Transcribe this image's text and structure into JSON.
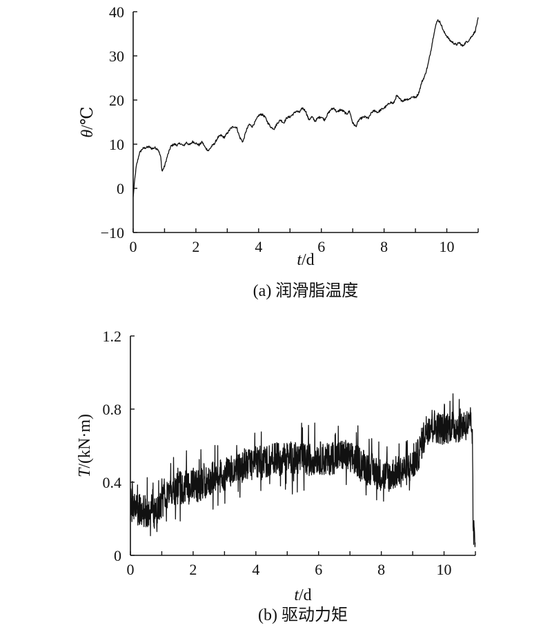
{
  "chart_data": [
    {
      "type": "line",
      "caption": "(a) 润滑脂温度",
      "xlabel_var": "t",
      "xlabel_unit": "/d",
      "ylabel_var": "θ",
      "ylabel_unit": "/℃",
      "xlim": [
        0,
        11
      ],
      "ylim": [
        -10,
        40
      ],
      "xticks": [
        "0",
        "2",
        "4",
        "6",
        "8",
        "10"
      ],
      "yticks": [
        "−10",
        "0",
        "10",
        "20",
        "30",
        "40"
      ],
      "series": [
        {
          "x": [
            0,
            0.05,
            0.1,
            0.2,
            0.3,
            0.4,
            0.5,
            0.6,
            0.7,
            0.8,
            0.88,
            0.92,
            1.0,
            1.1,
            1.2,
            1.3,
            1.4,
            1.5,
            1.6,
            1.7,
            1.8,
            1.9,
            2.0,
            2.1,
            2.2,
            2.3,
            2.4,
            2.5,
            2.6,
            2.7,
            2.8,
            2.9,
            3.0,
            3.1,
            3.2,
            3.3,
            3.4,
            3.5,
            3.6,
            3.7,
            3.8,
            3.9,
            4.0,
            4.1,
            4.2,
            4.3,
            4.4,
            4.5,
            4.6,
            4.7,
            4.8,
            4.9,
            5.0,
            5.1,
            5.2,
            5.3,
            5.4,
            5.5,
            5.6,
            5.7,
            5.8,
            5.9,
            6.0,
            6.1,
            6.2,
            6.3,
            6.4,
            6.5,
            6.6,
            6.7,
            6.8,
            6.9,
            7.0,
            7.1,
            7.2,
            7.3,
            7.4,
            7.5,
            7.6,
            7.7,
            7.8,
            7.9,
            8.0,
            8.1,
            8.2,
            8.3,
            8.4,
            8.5,
            8.6,
            8.7,
            8.8,
            8.9,
            9.0,
            9.1,
            9.2,
            9.3,
            9.4,
            9.5,
            9.6,
            9.7,
            9.8,
            9.9,
            10.0,
            10.1,
            10.2,
            10.3,
            10.4,
            10.5,
            10.6,
            10.7,
            10.8,
            10.9,
            11.0
          ],
          "values": [
            -2,
            2,
            5,
            8,
            9,
            9.2,
            9.4,
            9,
            9.2,
            8.8,
            7,
            3.8,
            5,
            7.5,
            9.5,
            10,
            9.8,
            10.2,
            9.6,
            10.4,
            9.8,
            10.6,
            10.2,
            9.8,
            10.5,
            9.2,
            8.5,
            9.5,
            10.2,
            11.5,
            12,
            11.5,
            12.5,
            13.5,
            14,
            13.8,
            11.5,
            10.5,
            13,
            14.5,
            14,
            15.2,
            16.5,
            16.8,
            16.2,
            14.8,
            13.8,
            13.5,
            14.8,
            15.5,
            14.8,
            16,
            16.2,
            16.8,
            17.5,
            17.2,
            18.2,
            17.5,
            15.5,
            16.2,
            15.2,
            16,
            16.2,
            15.5,
            16.8,
            17.8,
            18.2,
            17.2,
            17.8,
            17.5,
            16.8,
            17.5,
            14.8,
            14,
            15.5,
            16,
            16.2,
            15.8,
            17.2,
            17.6,
            17.2,
            17.8,
            18.2,
            18.8,
            19.5,
            19.2,
            21,
            20.2,
            19.8,
            20.2,
            20.2,
            20.8,
            20.5,
            21.5,
            24,
            25.5,
            28,
            31.5,
            35.5,
            38.2,
            37.5,
            35.5,
            34.5,
            33.5,
            33,
            32.5,
            33,
            32.2,
            33,
            33.5,
            34.5,
            35.5,
            38.5
          ]
        }
      ]
    },
    {
      "type": "line",
      "caption": "(b) 驱动力矩",
      "xlabel_var": "t",
      "xlabel_unit": "/d",
      "ylabel_var": "T",
      "ylabel_unit": "/(kN·m)",
      "xlim": [
        0,
        11
      ],
      "ylim": [
        0,
        1.2
      ],
      "xticks": [
        "0",
        "2",
        "4",
        "6",
        "8",
        "10"
      ],
      "yticks": [
        "0",
        "0.4",
        "0.8",
        "1.2"
      ],
      "series": [
        {
          "x": [
            0,
            0.2,
            0.4,
            0.6,
            0.8,
            0.9,
            1.0,
            1.05,
            1.2,
            1.4,
            1.6,
            1.8,
            2.0,
            2.2,
            2.4,
            2.6,
            2.8,
            3.0,
            3.2,
            3.4,
            3.6,
            3.8,
            4.0,
            4.2,
            4.4,
            4.6,
            4.8,
            5.0,
            5.2,
            5.4,
            5.6,
            5.8,
            6.0,
            6.2,
            6.4,
            6.6,
            6.8,
            7.0,
            7.2,
            7.4,
            7.6,
            7.8,
            8.0,
            8.2,
            8.4,
            8.6,
            8.8,
            9.0,
            9.2,
            9.4,
            9.6,
            9.8,
            10.0,
            10.2,
            10.4,
            10.6,
            10.8,
            10.9,
            10.93,
            11.0
          ],
          "values": [
            0.28,
            0.25,
            0.24,
            0.24,
            0.23,
            0.25,
            0.3,
            0.35,
            0.34,
            0.36,
            0.37,
            0.38,
            0.39,
            0.38,
            0.4,
            0.42,
            0.43,
            0.44,
            0.46,
            0.47,
            0.48,
            0.5,
            0.51,
            0.51,
            0.52,
            0.53,
            0.52,
            0.54,
            0.53,
            0.53,
            0.52,
            0.53,
            0.54,
            0.52,
            0.53,
            0.54,
            0.55,
            0.53,
            0.52,
            0.5,
            0.48,
            0.46,
            0.44,
            0.43,
            0.45,
            0.46,
            0.47,
            0.49,
            0.56,
            0.68,
            0.72,
            0.7,
            0.69,
            0.71,
            0.7,
            0.72,
            0.71,
            0.68,
            0.12,
            0.08
          ],
          "noise_amplitude": 0.09
        }
      ]
    }
  ]
}
